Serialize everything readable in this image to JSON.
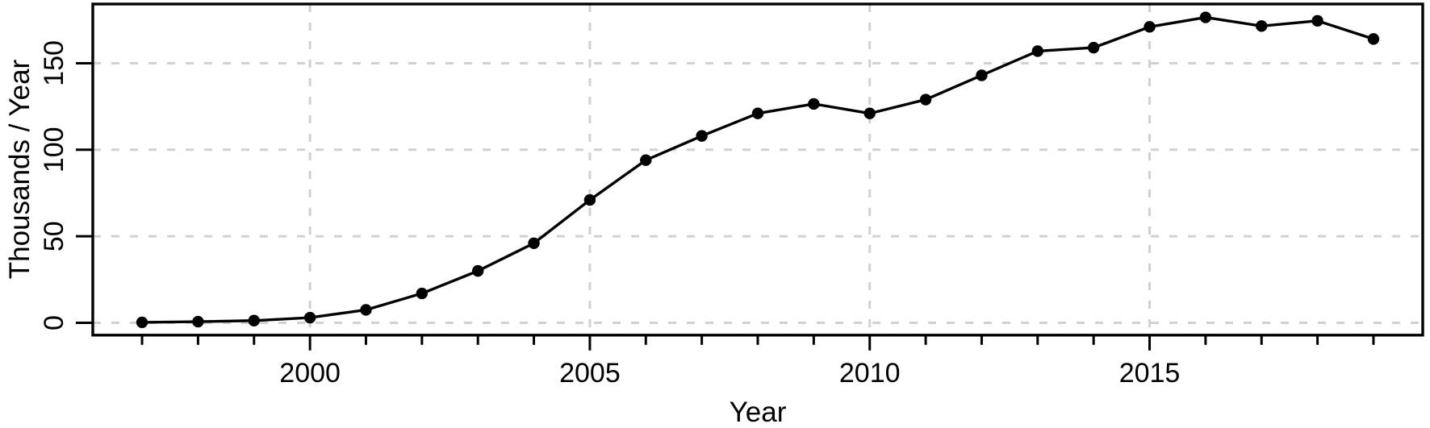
{
  "chart_data": {
    "type": "line",
    "title": "",
    "xlabel": "Year",
    "ylabel": "Thousands / Year",
    "series": [
      {
        "name": "thousands-per-year",
        "x": [
          1997,
          1998,
          1999,
          2000,
          2001,
          2002,
          2003,
          2004,
          2005,
          2006,
          2007,
          2008,
          2009,
          2010,
          2011,
          2012,
          2013,
          2014,
          2015,
          2016,
          2017,
          2018,
          2019
        ],
        "values": [
          0.3,
          0.7,
          1.3,
          3,
          7.5,
          17,
          30,
          46,
          71,
          94,
          108,
          121,
          126.5,
          121,
          129,
          143,
          157,
          159,
          171,
          176.5,
          171.5,
          174.5,
          164
        ]
      }
    ],
    "xticks_minor": [
      1997,
      1998,
      1999,
      2000,
      2001,
      2002,
      2003,
      2004,
      2005,
      2006,
      2007,
      2008,
      2009,
      2010,
      2011,
      2012,
      2013,
      2014,
      2015,
      2016,
      2017,
      2018,
      2019
    ],
    "xticks_major": [
      2000,
      2005,
      2010,
      2015
    ],
    "xtick_labels": [
      "2000",
      "2005",
      "2010",
      "2015"
    ],
    "yticks": [
      0,
      50,
      100,
      150
    ],
    "ytick_labels": [
      "0",
      "50",
      "100",
      "150"
    ],
    "xlim": [
      1996.12,
      2019.88
    ],
    "ylim": [
      -7.1,
      184.2
    ],
    "grid": "dashed-major",
    "legend": "none",
    "marker": "filled-circle",
    "colors": {
      "line": "#000000",
      "marker": "#000000",
      "grid": "#d1d1d1",
      "box": "#000000",
      "background": "#ffffff",
      "text": "#000000"
    }
  }
}
